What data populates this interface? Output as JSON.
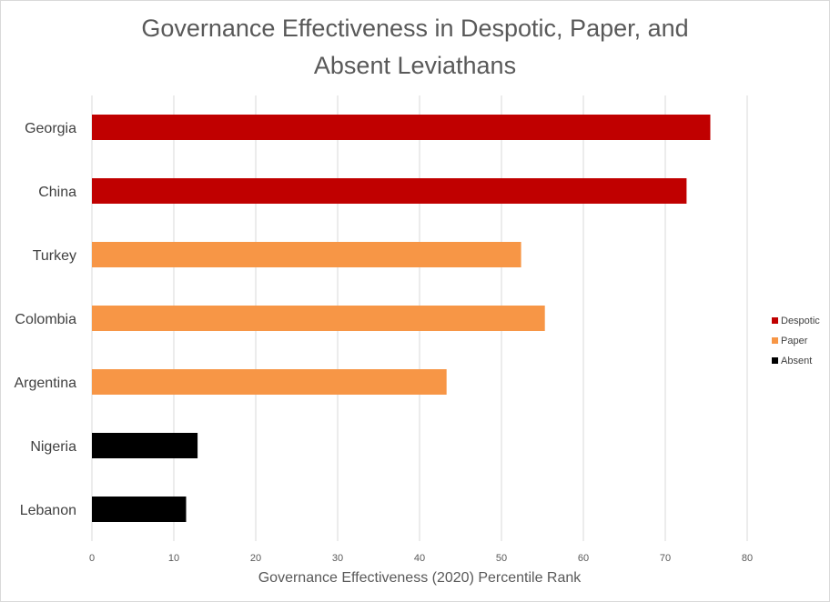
{
  "chart_data": {
    "type": "bar",
    "orientation": "horizontal",
    "title_lines": [
      "Governance Effectiveness in Despotic, Paper, and",
      "Absent Leviathans"
    ],
    "xlabel": "Governance Effectiveness (2020) Percentile Rank",
    "ylabel": "",
    "xlim": [
      0,
      80
    ],
    "xticks": [
      "0",
      "10",
      "20",
      "30",
      "40",
      "50",
      "60",
      "70",
      "80"
    ],
    "grid": true,
    "legend_position": "right",
    "categories": [
      "Georgia",
      "China",
      "Turkey",
      "Colombia",
      "Argentina",
      "Nigeria",
      "Lebanon"
    ],
    "values": [
      75.5,
      72.6,
      52.4,
      55.3,
      43.3,
      12.9,
      11.5
    ],
    "groups": [
      "Despotic",
      "Despotic",
      "Paper",
      "Paper",
      "Paper",
      "Absent",
      "Absent"
    ],
    "series": [
      {
        "name": "Despotic",
        "color": "#c00000"
      },
      {
        "name": "Paper",
        "color": "#f79646"
      },
      {
        "name": "Absent",
        "color": "#000000"
      }
    ]
  }
}
